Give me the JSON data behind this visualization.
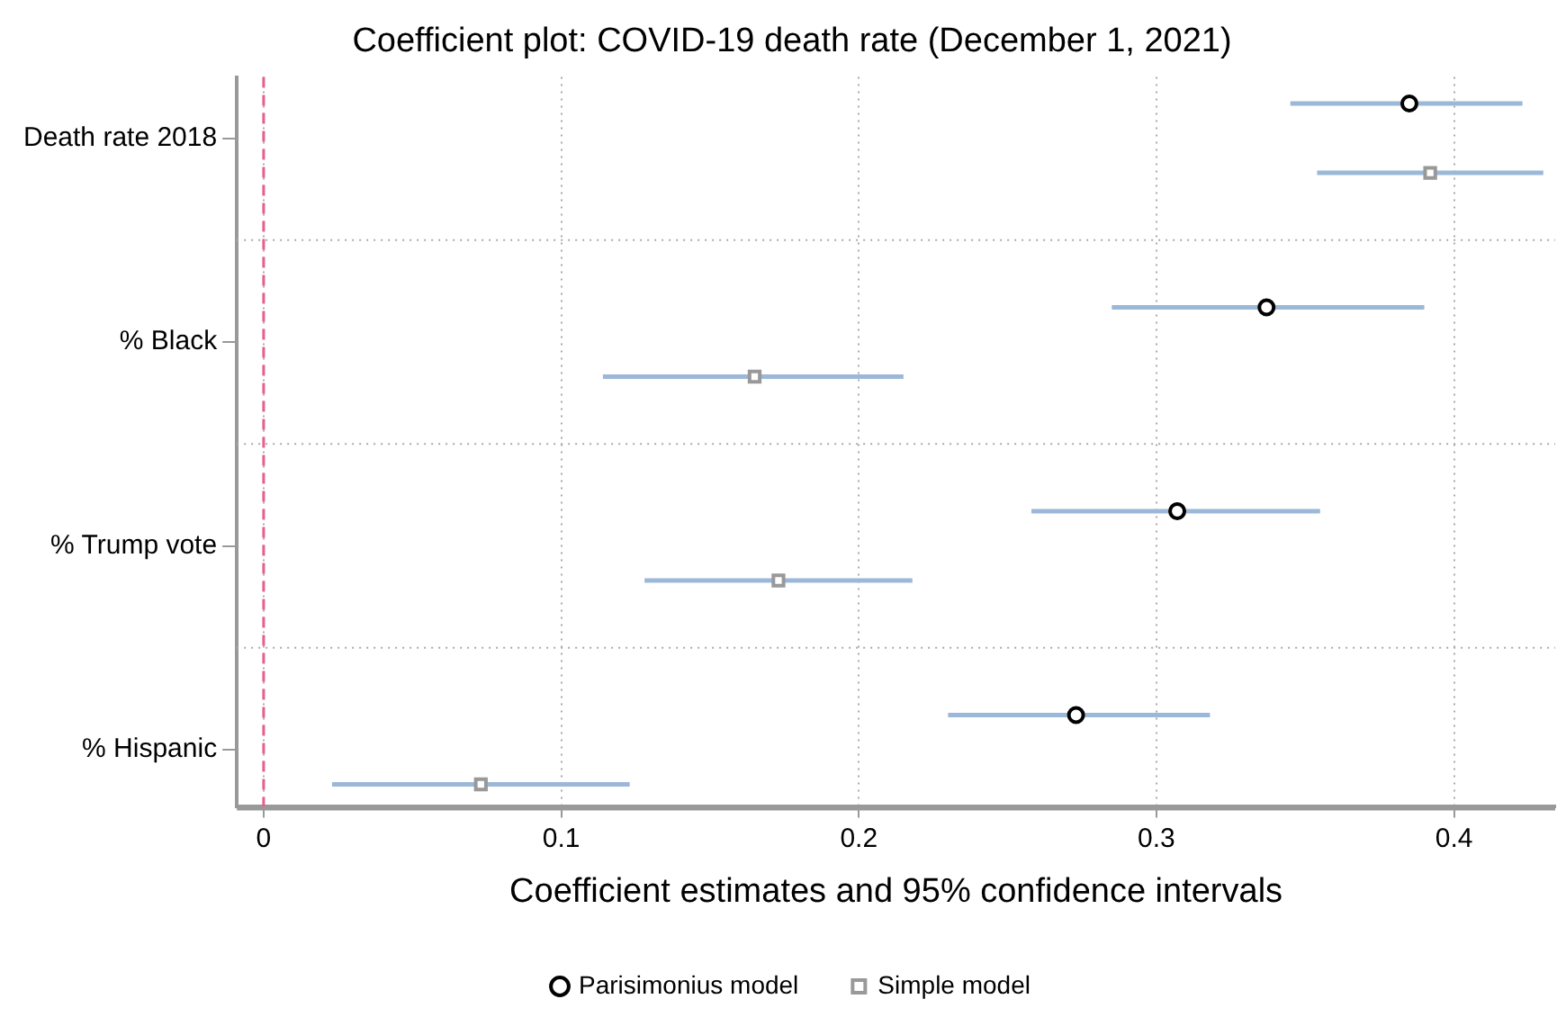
{
  "chart_data": {
    "type": "scatter",
    "title": "Coefficient plot: COVID-19 death rate (December 1, 2021)",
    "xlabel": "Coefficient estimates and 95% confidence intervals",
    "categories": [
      "Death rate 2018",
      "% Black",
      "% Trump vote",
      "% Hispanic"
    ],
    "series": [
      {
        "name": "Parisimonius model",
        "color": "#000000",
        "marker": "circle",
        "values": [
          0.385,
          0.337,
          0.307,
          0.273
        ],
        "errors": [
          [
            0.345,
            0.423
          ],
          [
            0.285,
            0.39
          ],
          [
            0.258,
            0.355
          ],
          [
            0.23,
            0.318
          ]
        ]
      },
      {
        "name": "Simple model",
        "color": "#999999",
        "marker": "square",
        "values": [
          0.392,
          0.165,
          0.173,
          0.073
        ],
        "errors": [
          [
            0.354,
            0.43
          ],
          [
            0.114,
            0.215
          ],
          [
            0.128,
            0.218
          ],
          [
            0.023,
            0.123
          ]
        ]
      }
    ],
    "orientation": "horizontal",
    "xlim": [
      -0.009,
      0.434
    ],
    "xticks": [
      0,
      0.1,
      0.2,
      0.3,
      0.4
    ],
    "ref_lines": [
      {
        "axis": "x",
        "value": 0,
        "color": "#e8608a",
        "line_style": "dashed"
      }
    ],
    "grid": true,
    "legend": "bottom"
  }
}
